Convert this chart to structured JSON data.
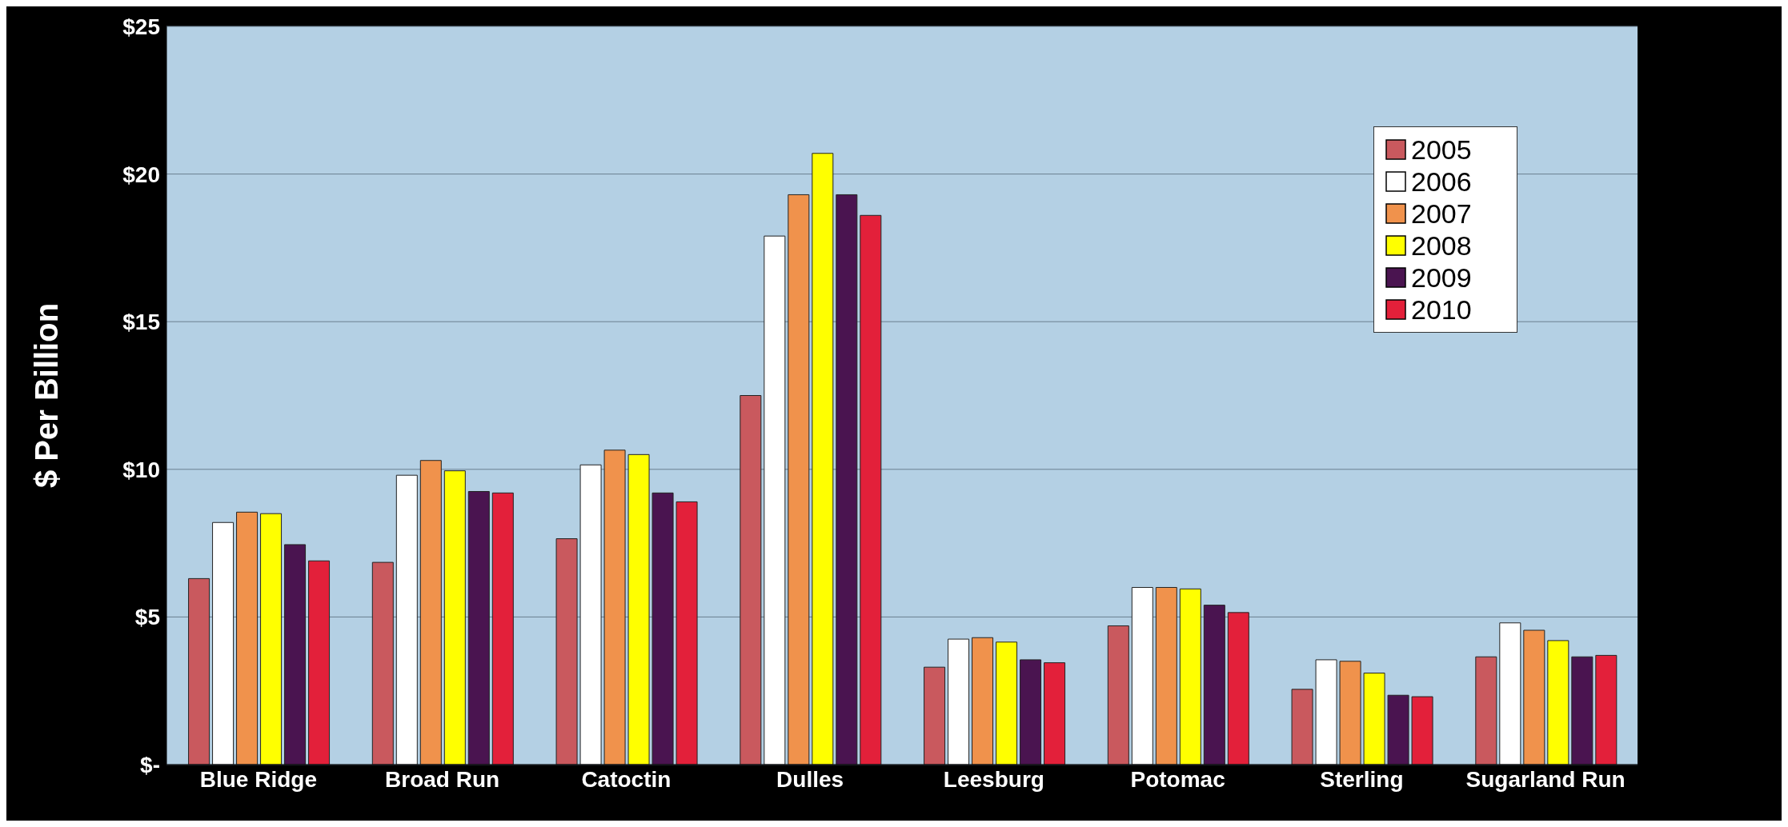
{
  "chart_data": {
    "type": "bar",
    "ylabel": "$ Per Billion",
    "categories": [
      "Blue Ridge",
      "Broad Run",
      "Catoctin",
      "Dulles",
      "Leesburg",
      "Potomac",
      "Sterling",
      "Sugarland Run"
    ],
    "series": [
      {
        "name": "2005",
        "color": "#c9595e",
        "values": [
          6.3,
          6.85,
          7.65,
          12.5,
          3.3,
          4.7,
          2.55,
          3.65
        ]
      },
      {
        "name": "2006",
        "color": "#ffffff",
        "values": [
          8.2,
          9.8,
          10.15,
          17.9,
          4.25,
          6.0,
          3.55,
          4.8
        ]
      },
      {
        "name": "2007",
        "color": "#f0924c",
        "values": [
          8.55,
          10.3,
          10.65,
          19.3,
          4.3,
          6.0,
          3.5,
          4.55
        ]
      },
      {
        "name": "2008",
        "color": "#ffff00",
        "values": [
          8.5,
          9.95,
          10.5,
          20.7,
          4.15,
          5.95,
          3.1,
          4.2
        ]
      },
      {
        "name": "2009",
        "color": "#4a1450",
        "values": [
          7.45,
          9.25,
          9.2,
          19.3,
          3.55,
          5.4,
          2.35,
          3.65
        ]
      },
      {
        "name": "2010",
        "color": "#e3203a",
        "values": [
          6.9,
          9.2,
          8.9,
          18.6,
          3.45,
          5.15,
          2.3,
          3.7
        ]
      }
    ],
    "ylim": [
      0,
      25
    ],
    "yticks": [
      {
        "value": 0,
        "label": "$-"
      },
      {
        "value": 5,
        "label": "$5"
      },
      {
        "value": 10,
        "label": "$10"
      },
      {
        "value": 15,
        "label": "$15"
      },
      {
        "value": 20,
        "label": "$20"
      },
      {
        "value": 25,
        "label": "$25"
      }
    ],
    "grid": "y",
    "legend": "top right"
  }
}
